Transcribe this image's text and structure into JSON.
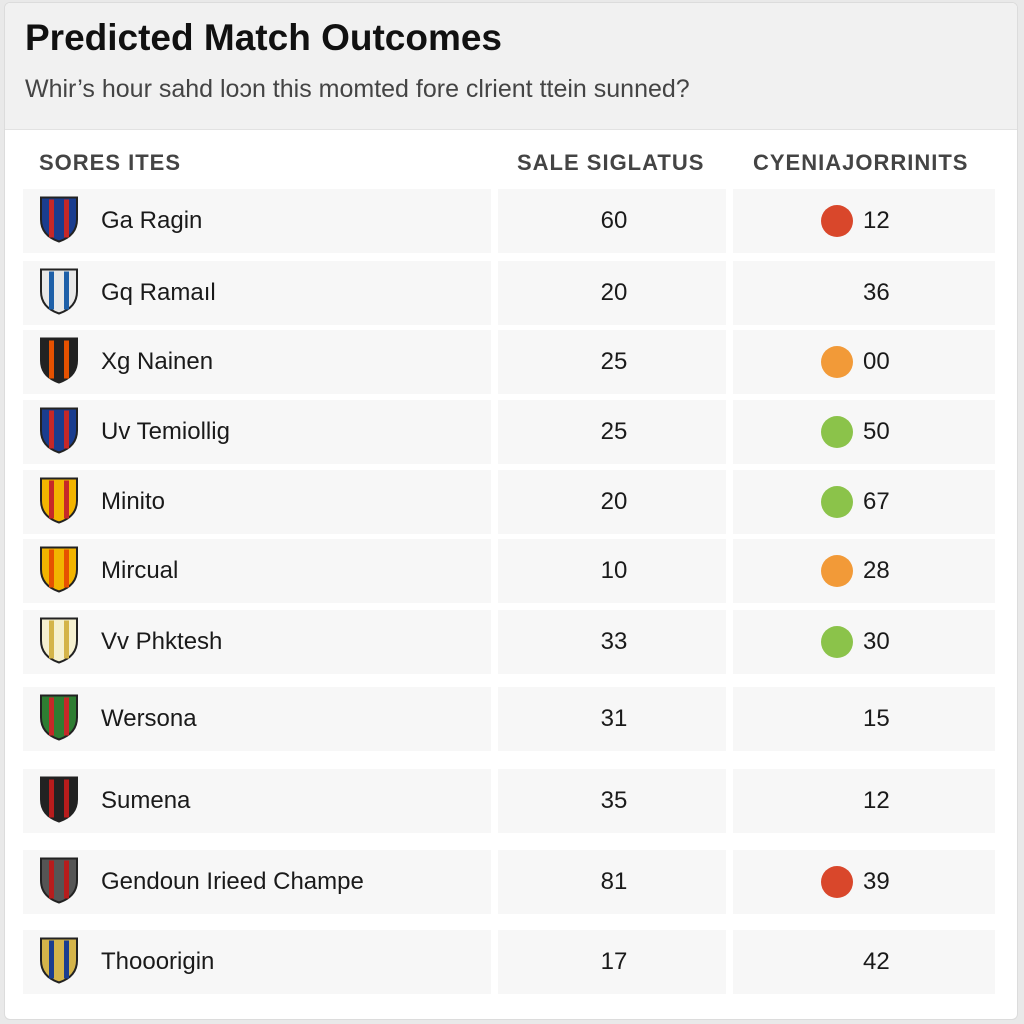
{
  "header": {
    "title": "Predicted Match Outcomes",
    "subtitle": "Whir’s hour sahd loɔn this momted fore clrient ttein sunned?"
  },
  "table": {
    "columns": [
      "SORES ITES",
      "SALE SIGLATUS",
      "CYENIAJORRINITS"
    ],
    "rows": [
      {
        "team": "Ga Ragin",
        "score": "60",
        "value": "12",
        "dot": "#d9472b"
      },
      {
        "team": "Gq Ramaıl",
        "score": "20",
        "value": "36"
      },
      {
        "team": "Xg Nainen",
        "score": "25",
        "value": "00",
        "dot": "#f29a38"
      },
      {
        "team": "Uv Temiollig",
        "score": "25",
        "value": "50",
        "dot": "#8bc34a"
      },
      {
        "team": "Minito",
        "score": "20",
        "value": "67",
        "dot": "#8bc34a"
      },
      {
        "team": "Mircual",
        "score": "10",
        "value": "28",
        "dot": "#f29a38"
      },
      {
        "team": "Vv Phktesh",
        "score": "33",
        "value": "30",
        "dot": "#8bc34a"
      },
      {
        "team": "Wersona",
        "score": "31",
        "value": "15"
      },
      {
        "team": "Sumena",
        "score": "35",
        "value": "12"
      },
      {
        "team": "Gendoun Irieed Champe",
        "score": "81",
        "value": "39",
        "dot": "#d9472b"
      },
      {
        "team": "Thooorigin",
        "score": "17",
        "value": "42"
      }
    ]
  }
}
